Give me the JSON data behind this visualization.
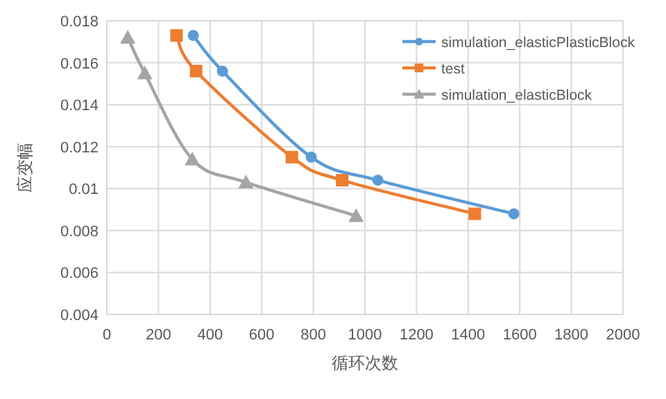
{
  "chart_data": {
    "type": "line",
    "xlabel": "循环次数",
    "ylabel": "应变幅",
    "xlim": [
      0,
      2000
    ],
    "xticks": [
      0,
      200,
      400,
      600,
      800,
      1000,
      1200,
      1400,
      1600,
      1800,
      2000
    ],
    "ylim": [
      0.004,
      0.018
    ],
    "yticks": [
      0.004,
      0.006,
      0.008,
      0.01,
      0.012,
      0.014,
      0.016,
      0.018
    ],
    "grid": true,
    "legend": "top right",
    "series": [
      {
        "name": "simulation_elasticPlasticBlock",
        "color": "#5b9bd5",
        "marker": "circle",
        "x": [
          335,
          448,
          792,
          1050,
          1577
        ],
        "values": [
          0.0173,
          0.0156,
          0.0115,
          0.0104,
          0.0088
        ]
      },
      {
        "name": "test",
        "color": "#ed7d31",
        "marker": "square",
        "x": [
          270,
          346,
          717,
          912,
          1426
        ],
        "values": [
          0.0173,
          0.0156,
          0.0115,
          0.0104,
          0.0088
        ]
      },
      {
        "name": "simulation_elasticBlock",
        "color": "#a5a5a5",
        "marker": "triangle",
        "x": [
          81,
          147,
          331,
          539,
          966
        ],
        "values": [
          0.0172,
          0.0155,
          0.0114,
          0.0103,
          0.0087
        ]
      }
    ]
  }
}
